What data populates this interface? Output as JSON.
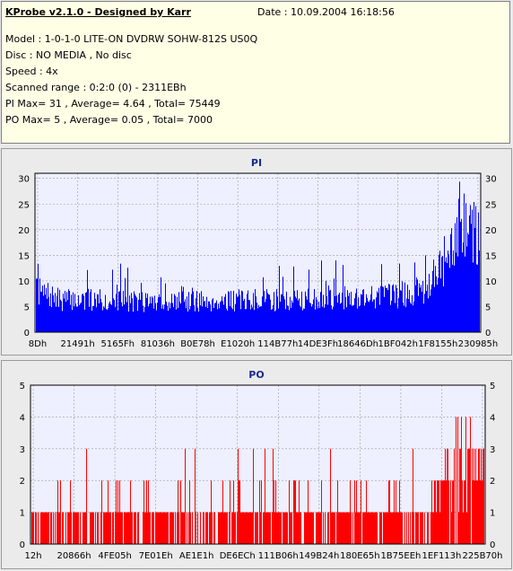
{
  "header": {
    "title": "KProbe v2.1.0 - Designed by Karr",
    "date": "Date : 10.09.2004 16:18:56",
    "lines": [
      "Model : 1-0-1-0 LITE-ON DVDRW SOHW-812S  US0Q",
      "Disc : NO MEDIA , No disc",
      "Speed : 4x",
      "Scanned range : 0:2:0 (0) - 2311EBh",
      "PI Max= 31 , Average= 4.64 , Total= 75449",
      "PO Max= 5 , Average= 0.05 , Total= 7000"
    ]
  },
  "chart_data": [
    {
      "type": "bar",
      "title": "PI",
      "color": "#0000ff",
      "ylim": [
        0,
        31
      ],
      "yticks": [
        0,
        5,
        10,
        15,
        20,
        25,
        30
      ],
      "xticks": [
        "8Dh",
        "21491h",
        "5165Fh",
        "81036h",
        "B0E78h",
        "E1020h",
        "114B77h",
        "14DE3Fh",
        "18646Dh",
        "1BF042h",
        "1F8155h",
        "230985h"
      ],
      "grid": true,
      "x_range": [
        "8Dh",
        "230985h"
      ],
      "profile": [
        {
          "x_frac": 0.0,
          "base": 9.5,
          "spikes": 14
        },
        {
          "x_frac": 0.05,
          "base": 7.5,
          "spikes": 14
        },
        {
          "x_frac": 0.3,
          "base": 7,
          "spikes": 13
        },
        {
          "x_frac": 0.6,
          "base": 7.5,
          "spikes": 14
        },
        {
          "x_frac": 0.82,
          "base": 8.5,
          "spikes": 15
        },
        {
          "x_frac": 0.88,
          "base": 10,
          "spikes": 15
        },
        {
          "x_frac": 0.93,
          "base": 18,
          "spikes": 25
        },
        {
          "x_frac": 0.96,
          "base": 24,
          "spikes": 31
        },
        {
          "x_frac": 1.0,
          "base": 22,
          "spikes": 29
        }
      ]
    },
    {
      "type": "bar",
      "title": "PO",
      "color": "#ff0000",
      "ylim": [
        0,
        5
      ],
      "yticks": [
        0,
        1,
        2,
        3,
        4,
        5
      ],
      "xticks": [
        "12h",
        "20866h",
        "4FE05h",
        "7E01Eh",
        "AE1E1h",
        "DE6ECh",
        "111B06h",
        "149B24h",
        "180E65h",
        "1B75EEh",
        "1EF113h",
        "225B70h"
      ],
      "grid": true,
      "x_range": [
        "12h",
        "225B70h"
      ],
      "profile": [
        {
          "x_frac": 0.0,
          "base": 1,
          "spikes": 2
        },
        {
          "x_frac": 0.88,
          "base": 1,
          "spikes": 2
        },
        {
          "x_frac": 0.93,
          "base": 2,
          "spikes": 4
        },
        {
          "x_frac": 0.955,
          "base": 2,
          "spikes": 5
        },
        {
          "x_frac": 1.0,
          "base": 2,
          "spikes": 3
        }
      ]
    }
  ]
}
